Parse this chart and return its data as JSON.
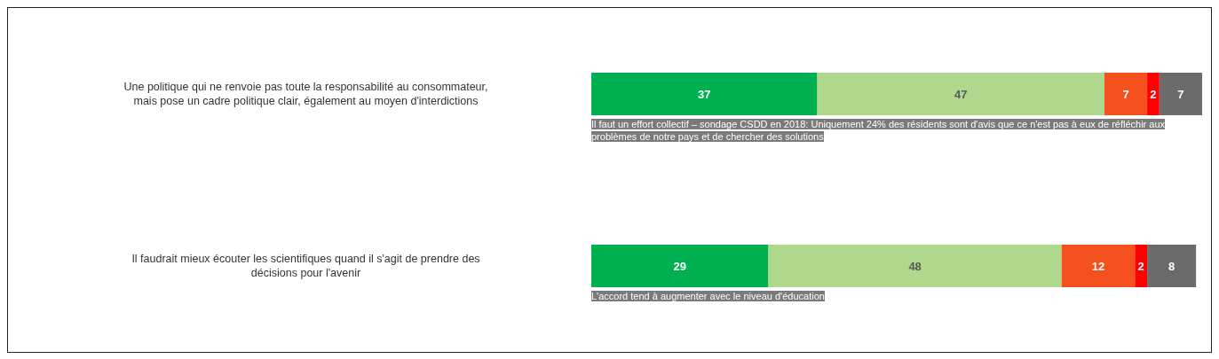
{
  "chart_data": {
    "type": "bar",
    "orientation": "horizontal",
    "stacked": true,
    "data_labels": true,
    "categories": [
      "Une politique qui ne renvoie pas toute la responsabilité au consommateur, mais pose un cadre politique clair, également au moyen d'interdictions",
      "Il faudrait mieux écouter les scientifiques quand il s'agit de prendre des décisions pour l'avenir"
    ],
    "series": [
      {
        "color": "#00b050",
        "values": [
          37,
          29
        ]
      },
      {
        "color": "#b0d88c",
        "values": [
          47,
          48
        ]
      },
      {
        "color": "#f4511e",
        "values": [
          7,
          12
        ]
      },
      {
        "color": "#ff0000",
        "values": [
          2,
          2
        ]
      },
      {
        "color": "#6b6b6b",
        "values": [
          7,
          8
        ]
      }
    ],
    "annotations": [
      "Il faut un effort collectif – sondage CSDD en 2018: Uniquement 24% des résidents sont d'avis que ce n'est pas à eux de réfléchir aux problèmes de notre pays et de chercher des solutions",
      "L'accord tend à augmenter avec le niveau d'éducation"
    ],
    "legend": false,
    "grid": false
  }
}
